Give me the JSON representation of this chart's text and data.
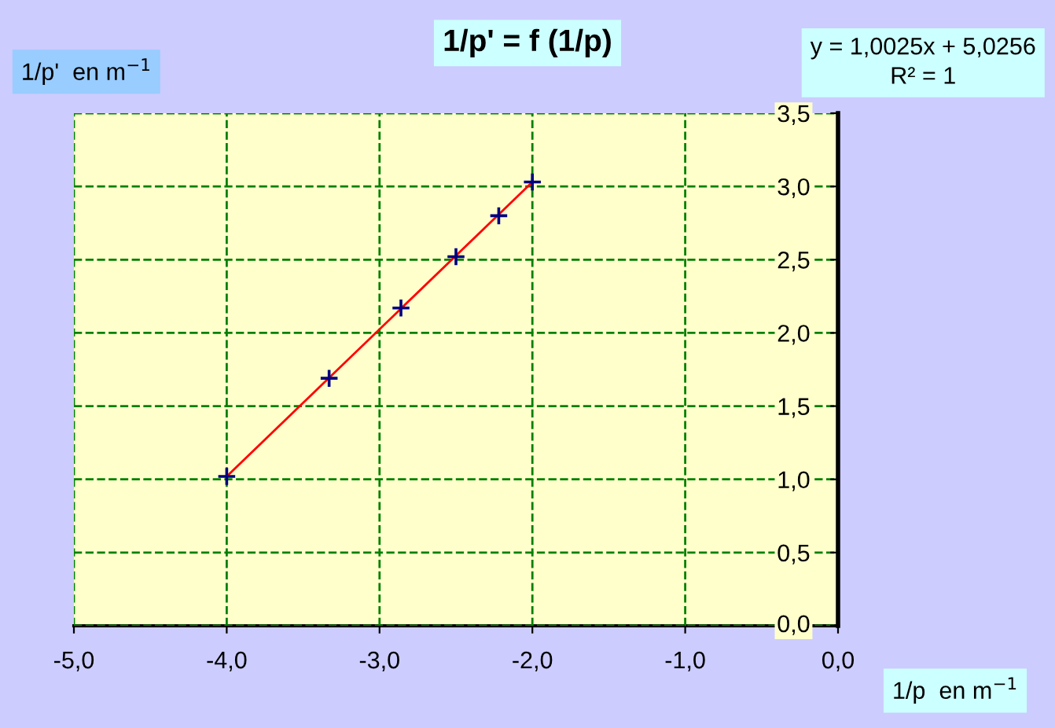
{
  "chart_data": {
    "type": "scatter",
    "title": "1/p' = f (1/p)",
    "xlabel": "1/p  en m$^{−1}$",
    "ylabel": "1/p'  en m$^{−1}$",
    "annotations": [
      "y = 1,0025x + 5,0256\nR² = 1"
    ],
    "series": [
      {
        "color": "#000080",
        "x": [
          -4.0,
          -3.33,
          -2.86,
          -2.5,
          -2.22,
          -2.0
        ],
        "values": [
          1.02,
          1.69,
          2.17,
          2.52,
          2.8,
          3.03
        ],
        "marker": "cross"
      },
      {
        "type": "line",
        "color": "#ff0000",
        "x": [
          -4.0,
          -2.0
        ],
        "values": [
          1.02,
          3.03
        ],
        "marker": "none"
      }
    ],
    "xlim": [
      -5,
      0
    ],
    "ylim": [
      0,
      3.5
    ],
    "xticks": [
      {
        "value": -5,
        "label": "-5,0"
      },
      {
        "value": -4,
        "label": "-4,0"
      },
      {
        "value": -3,
        "label": "-3,0"
      },
      {
        "value": -2,
        "label": "-2,0"
      },
      {
        "value": -1,
        "label": "-1,0"
      },
      {
        "value": 0,
        "label": "0,0"
      }
    ],
    "yticks": [
      {
        "value": 0,
        "label": "0,0"
      },
      {
        "value": 0.5,
        "label": "0,5"
      },
      {
        "value": 1,
        "label": "1,0"
      },
      {
        "value": 1.5,
        "label": "1,5"
      },
      {
        "value": 2,
        "label": "2,0"
      },
      {
        "value": 2.5,
        "label": "2,5"
      },
      {
        "value": 3,
        "label": "3,0"
      },
      {
        "value": 3.5,
        "label": "3,5"
      }
    ],
    "grid": true
  }
}
